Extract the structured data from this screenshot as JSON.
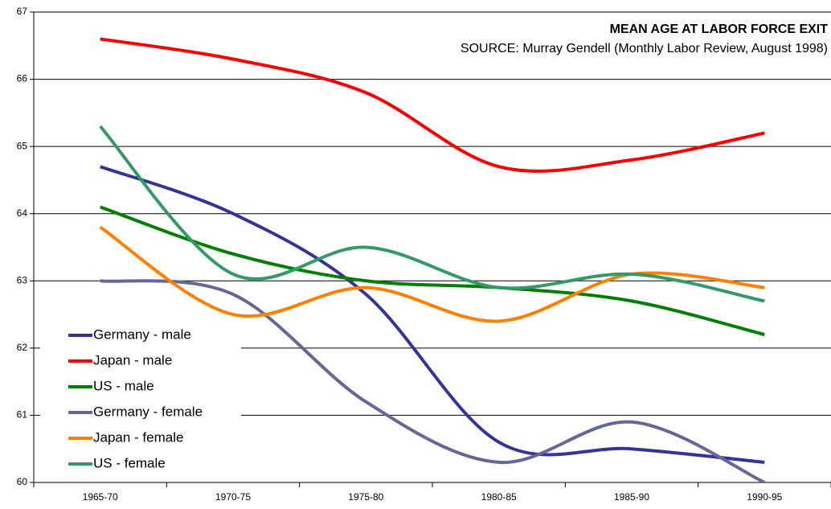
{
  "chart_data": {
    "type": "line",
    "title": "MEAN AGE AT LABOR FORCE EXIT",
    "subtitle": "SOURCE: Murray Gendell (Monthly Labor Review, August 1998)",
    "categories": [
      "1965-70",
      "1970-75",
      "1975-80",
      "1980-85",
      "1985-90",
      "1990-95"
    ],
    "series": [
      {
        "name": "Germany - male",
        "color": "#333399",
        "values": [
          64.7,
          64.0,
          62.8,
          60.6,
          60.5,
          60.3
        ]
      },
      {
        "name": "Japan - male",
        "color": "#ff0000",
        "values": [
          66.6,
          66.3,
          65.8,
          64.7,
          64.8,
          65.2
        ]
      },
      {
        "name": "US - male",
        "color": "#008000",
        "values": [
          64.1,
          63.4,
          63.0,
          62.9,
          62.7,
          62.2
        ]
      },
      {
        "name": "Germany - female",
        "color": "#666699",
        "values": [
          63.0,
          62.8,
          61.2,
          60.3,
          60.9,
          60.0
        ]
      },
      {
        "name": "Japan - female",
        "color": "#ff8000",
        "values": [
          63.8,
          62.5,
          62.9,
          62.4,
          63.1,
          62.9
        ]
      },
      {
        "name": "US - female",
        "color": "#339966",
        "values": [
          65.3,
          63.1,
          63.5,
          62.9,
          63.1,
          62.7
        ]
      }
    ],
    "ylim": [
      60,
      67
    ],
    "yticks": [
      60,
      61,
      62,
      63,
      64,
      65,
      66,
      67
    ],
    "grid": true,
    "legend": "lower left"
  }
}
